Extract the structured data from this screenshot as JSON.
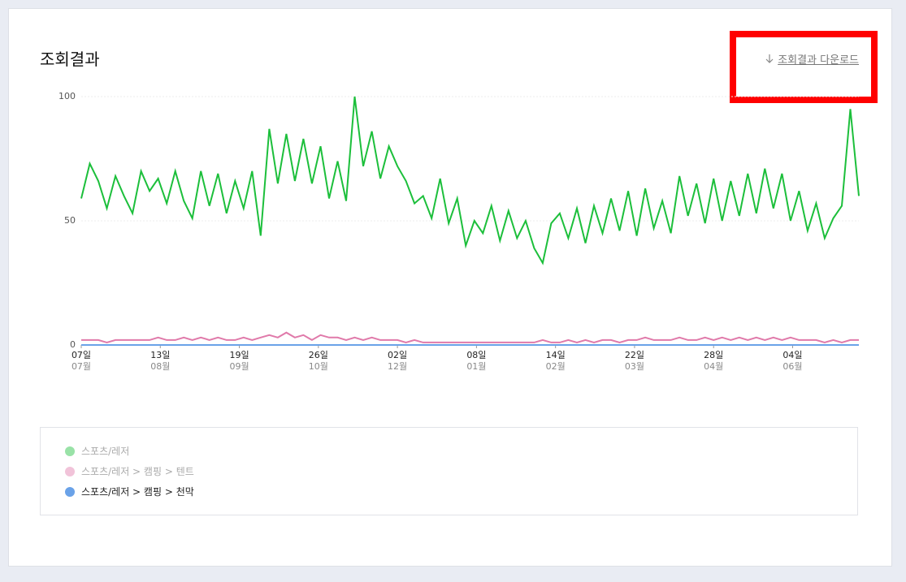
{
  "header": {
    "title": "조회결과",
    "download_link": "조회결과 다운로드"
  },
  "chart_data": {
    "type": "line",
    "x": [
      0,
      4,
      8,
      12,
      16,
      20,
      24,
      28,
      32,
      36,
      40,
      44,
      48,
      52,
      56,
      60,
      64,
      68,
      72,
      76,
      80,
      84,
      88,
      92,
      96,
      100,
      104,
      108,
      112,
      116,
      120,
      124,
      128,
      132,
      136,
      140,
      144,
      148,
      152,
      156,
      160,
      164,
      168,
      172,
      176,
      180,
      184,
      188,
      192,
      196,
      200,
      204,
      208,
      212,
      216,
      220,
      224,
      228,
      232,
      236,
      240,
      244,
      248,
      252,
      256,
      260,
      264,
      268,
      272,
      276,
      280,
      284,
      288,
      292,
      296,
      300,
      304,
      308,
      312,
      316,
      320,
      324,
      328,
      332,
      336,
      340,
      344,
      348,
      352,
      356,
      360,
      364
    ],
    "xlim": [
      0,
      364
    ],
    "xticks": [
      {
        "value": 0,
        "label": "07일"
      },
      {
        "value": 37,
        "label": "13일"
      },
      {
        "value": 74,
        "label": "19일"
      },
      {
        "value": 111,
        "label": "26일"
      },
      {
        "value": 148,
        "label": "02일"
      },
      {
        "value": 185,
        "label": "08일"
      },
      {
        "value": 222,
        "label": "14일"
      },
      {
        "value": 259,
        "label": "22일"
      },
      {
        "value": 296,
        "label": "28일"
      },
      {
        "value": 333,
        "label": "04일"
      }
    ],
    "xtick_months": [
      "07월",
      "08월",
      "09월",
      "10월",
      "12월",
      "01월",
      "02월",
      "03월",
      "04월",
      "06월"
    ],
    "ylim": [
      0,
      100
    ],
    "yticks": [
      0,
      50,
      100
    ],
    "grid": true,
    "series": [
      {
        "name": "스포츠/레저",
        "color": "#1cbf3b",
        "legend_active": false,
        "values": [
          59,
          73,
          66,
          55,
          68,
          60,
          53,
          70,
          62,
          67,
          57,
          70,
          58,
          51,
          70,
          56,
          69,
          53,
          66,
          55,
          70,
          44,
          87,
          65,
          85,
          66,
          83,
          65,
          80,
          59,
          74,
          58,
          100,
          72,
          86,
          67,
          80,
          72,
          66,
          57,
          60,
          51,
          67,
          49,
          59,
          40,
          50,
          45,
          56,
          42,
          54,
          43,
          50,
          39,
          33,
          49,
          53,
          43,
          55,
          41,
          56,
          45,
          59,
          46,
          62,
          44,
          63,
          47,
          58,
          45,
          68,
          52,
          65,
          49,
          67,
          50,
          66,
          52,
          69,
          53,
          71,
          55,
          69,
          50,
          62,
          46,
          57,
          43,
          51,
          56,
          95,
          60
        ]
      },
      {
        "name": "스포츠/레저 > 캠핑 > 텐트",
        "color": "#e07aaa",
        "legend_active": false,
        "values": [
          2,
          2,
          2,
          1,
          2,
          2,
          2,
          2,
          2,
          3,
          2,
          2,
          3,
          2,
          3,
          2,
          3,
          2,
          2,
          3,
          2,
          3,
          4,
          3,
          5,
          3,
          4,
          2,
          4,
          3,
          3,
          2,
          3,
          2,
          3,
          2,
          2,
          2,
          1,
          2,
          1,
          1,
          1,
          1,
          1,
          1,
          1,
          1,
          1,
          1,
          1,
          1,
          1,
          1,
          2,
          1,
          1,
          2,
          1,
          2,
          1,
          2,
          2,
          1,
          2,
          2,
          3,
          2,
          2,
          2,
          3,
          2,
          2,
          3,
          2,
          3,
          2,
          3,
          2,
          3,
          2,
          3,
          2,
          3,
          2,
          2,
          2,
          1,
          2,
          1,
          2,
          2
        ]
      },
      {
        "name": "스포츠/레저 > 캠핑 > 천막",
        "color": "#6aa2e8",
        "legend_active": true,
        "values": [
          0,
          0,
          0,
          0,
          0,
          0,
          0,
          0,
          0,
          0,
          0,
          0,
          0,
          0,
          0,
          0,
          0,
          0,
          0,
          0,
          0,
          0,
          0,
          0,
          0,
          0,
          0,
          0,
          0,
          0,
          0,
          0,
          0,
          0,
          0,
          0,
          0,
          0,
          0,
          0,
          0,
          0,
          0,
          0,
          0,
          0,
          0,
          0,
          0,
          0,
          0,
          0,
          0,
          0,
          0,
          0,
          0,
          0,
          0,
          0,
          0,
          0,
          0,
          0,
          0,
          0,
          0,
          0,
          0,
          0,
          0,
          0,
          0,
          0,
          0,
          0,
          0,
          0,
          0,
          0,
          0,
          0,
          0,
          0,
          0,
          0,
          0,
          0,
          0,
          0,
          0,
          0
        ]
      }
    ]
  }
}
